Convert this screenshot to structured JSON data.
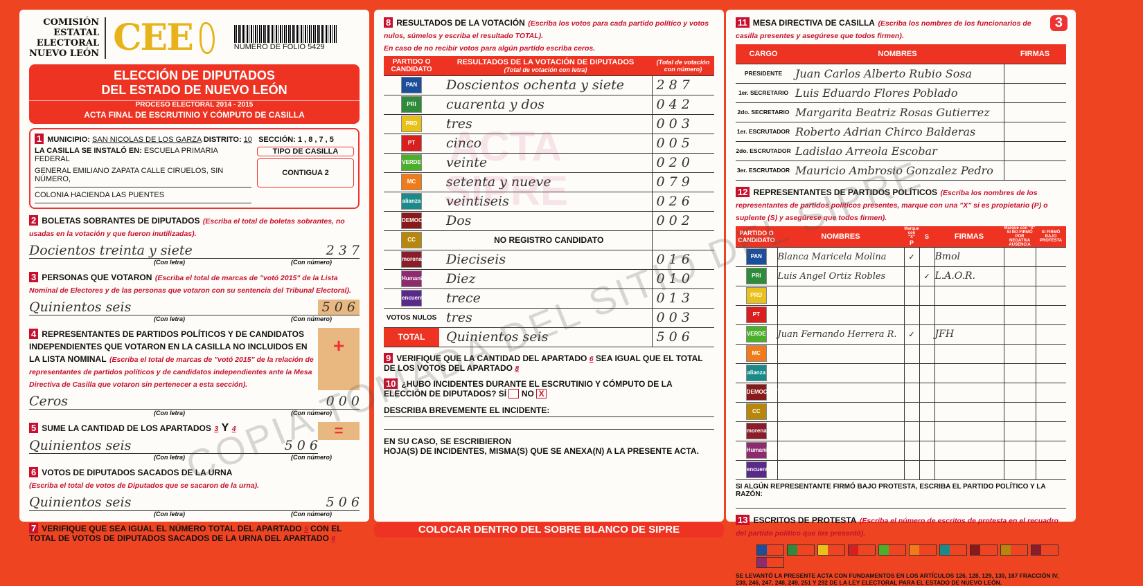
{
  "header": {
    "org": [
      "COMISIÓN",
      "ESTATAL",
      "ELECTORAL",
      "NUEVO LEÓN"
    ],
    "logo": "CEE",
    "folio": "NUMERO DE FOLIO 5429",
    "title1": "ELECCIÓN DE DIPUTADOS",
    "title2": "DEL ESTADO DE NUEVO LEÓN",
    "process": "PROCESO ELECTORAL  2014 - 2015",
    "acta": "ACTA FINAL DE ESCRUTINIO Y CÓMPUTO DE CASILLA",
    "page_number": "3"
  },
  "s1": {
    "num": "1",
    "municipio_label": "MUNICIPIO:",
    "municipio": "SAN NICOLAS DE LOS GARZA",
    "distrito_label": "DISTRITO:",
    "distrito": "10",
    "seccion_label": "SECCIÓN:",
    "seccion": "1 , 8 , 7 , 5",
    "instalo_label": "LA CASILLA SE INSTALÓ EN:",
    "addr1": "ESCUELA PRIMARIA FEDERAL",
    "addr2": "GENERAL EMILIANO ZAPATA CALLE CIRUELOS, SIN NÚMERO,",
    "addr3": "COLONIA HACIENDA LAS PUENTES",
    "tipo_label": "TIPO DE CASILLA",
    "tipo": "CONTIGUA 2"
  },
  "s2": {
    "num": "2",
    "title": "BOLETAS SOBRANTES DE DIPUTADOS",
    "note": "(Escriba el total de boletas sobrantes, no usadas en la votación y que fueron inutilizadas).",
    "letra": "Docientos treinta y siete",
    "numero": "2 3 7"
  },
  "labels": {
    "con_letra": "(Con letra)",
    "con_numero": "(Con número)",
    "plus": "+",
    "equals": "="
  },
  "s3": {
    "num": "3",
    "title": "PERSONAS QUE VOTARON",
    "note": "(Escriba el total de marcas de \"votó 2015\" de la Lista Nominal de Electores y de las personas que votaron con su sentencia del Tribunal Electoral).",
    "letra": "Quinientos seis",
    "numero": "5 0 6"
  },
  "s4": {
    "num": "4",
    "title": "REPRESENTANTES DE PARTIDOS POLÍTICOS Y DE CANDIDATOS INDEPENDIENTES QUE VOTARON EN LA CASILLA NO INCLUIDOS EN LA LISTA NOMINAL",
    "note": "(Escriba el total de marcas de \"votó 2015\" de la relación de representantes de partidos políticos y de candidatos independientes ante la Mesa Directiva de Casilla que votaron sin pertenecer a esta sección).",
    "letra": "Ceros",
    "numero": "0 0 0"
  },
  "s5": {
    "num": "5",
    "title": "SUME LA CANTIDAD DE LOS APARTADOS",
    "a": "3",
    "y": "Y",
    "b": "4",
    "letra": "Quinientos seis",
    "numero": "5 0 6"
  },
  "s6": {
    "num": "6",
    "title": "VOTOS DE DIPUTADOS SACADOS DE LA URNA",
    "note": "(Escriba el total de votos de Diputados que se sacaron de la urna).",
    "letra": "Quinientos seis",
    "numero": "5 0 6"
  },
  "s7": {
    "num": "7",
    "text1": "VERIFIQUE QUE SEA IGUAL EL NÚMERO TOTAL DEL APARTADO",
    "a": "5",
    "text2": "CON EL TOTAL DE VOTOS DE DIPUTADOS SACADOS DE LA URNA DEL APARTADO",
    "b": "6"
  },
  "s8": {
    "num": "8",
    "title": "RESULTADOS DE LA VOTACIÓN",
    "note": "(Escriba los votos para cada partido político y votos nulos, súmelos y escriba el resultado TOTAL).",
    "note2": "En caso de no recibir votos para algún partido escriba ceros.",
    "col1": "PARTIDO O CANDIDATO",
    "col2": "RESULTADOS DE LA VOTACIÓN DE DIPUTADOS",
    "col2sub": "(Total de votación con letra)",
    "col3": "(Total de votación con número)",
    "rows": [
      {
        "party": "PAN",
        "color": "#1b4f9c",
        "letra": "Doscientos ochenta y siete",
        "numero": "2 8 7"
      },
      {
        "party": "PRI",
        "color": "#2e8b3a",
        "letra": "cuarenta y dos",
        "numero": "0 4 2"
      },
      {
        "party": "PRD",
        "color": "#e8c21a",
        "letra": "tres",
        "numero": "0 0 3"
      },
      {
        "party": "PT",
        "color": "#d81e1e",
        "letra": "cinco",
        "numero": "0 0 5"
      },
      {
        "party": "VERDE",
        "color": "#4caf2c",
        "letra": "veinte",
        "numero": "0 2 0"
      },
      {
        "party": "MC",
        "color": "#f07b1a",
        "letra": "setenta y nueve",
        "numero": "0 7 9"
      },
      {
        "party": "alianza",
        "color": "#1a8a8a",
        "letra": "veintiseis",
        "numero": "0 2 6"
      },
      {
        "party": "DEMOCRATA",
        "color": "#8a1a1a",
        "letra": "Dos",
        "numero": "0 0 2"
      },
      {
        "party": "CC",
        "color": "#b8860b",
        "letra": "NO REGISTRO CANDIDATO",
        "numero": ""
      },
      {
        "party": "morena",
        "color": "#8b1c2a",
        "letra": "Dieciseis",
        "numero": "0 1 6"
      },
      {
        "party": "Humanista",
        "color": "#8e2a6e",
        "letra": "Diez",
        "numero": "0 1 0"
      },
      {
        "party": "encuentro",
        "color": "#5a2a8a",
        "letra": "trece",
        "numero": "0 1 3"
      }
    ],
    "nulos_label": "VOTOS NULOS",
    "nulos_letra": "tres",
    "nulos_numero": "0 0 3",
    "total_label": "TOTAL",
    "total_letra": "Quinientos seis",
    "total_numero": "5 0 6"
  },
  "s9": {
    "num": "9",
    "text1": "VERIFIQUE QUE LA CANTIDAD DEL APARTADO",
    "a": "6",
    "text2": "SEA IGUAL QUE EL TOTAL DE LOS VOTOS DEL APARTADO",
    "b": "8"
  },
  "s10": {
    "num": "10",
    "question": "¿HUBO INCIDENTES DURANTE EL ESCRUTINIO Y CÓMPUTO DE LA ELECCIÓN DE DIPUTADOS?",
    "si": "SÍ",
    "no": "NO",
    "no_mark": "X",
    "describe": "DESCRIBA BREVEMENTE EL INCIDENTE:",
    "hojas1": "EN SU CASO, SE ESCRIBIERON",
    "hojas2": "HOJA(S) DE INCIDENTES, MISMA(S) QUE SE ANEXA(N) A LA PRESENTE ACTA."
  },
  "s11": {
    "num": "11",
    "title": "MESA DIRECTIVA DE CASILLA",
    "note": "(Escriba los nombres de los funcionarios de casilla presentes y asegúrese que todos firmen).",
    "cols": [
      "CARGO",
      "NOMBRES",
      "FIRMAS"
    ],
    "rows": [
      {
        "cargo": "PRESIDENTE",
        "nombre": "Juan Carlos Alberto Rubio Sosa"
      },
      {
        "cargo": "1er. SECRETARIO",
        "nombre": "Luis Eduardo Flores Poblado"
      },
      {
        "cargo": "2do. SECRETARIO",
        "nombre": "Margarita Beatriz Rosas Gutierrez"
      },
      {
        "cargo": "1er. ESCRUTADOR",
        "nombre": "Roberto Adrian Chirco Balderas"
      },
      {
        "cargo": "2do. ESCRUTADOR",
        "nombre": "Ladislao Arreola Escobar"
      },
      {
        "cargo": "3er. ESCRUTADOR",
        "nombre": "Mauricio Ambrosio Gonzalez Pedro"
      }
    ]
  },
  "s12": {
    "num": "12",
    "title": "REPRESENTANTES DE PARTIDOS POLÍTICOS",
    "note": "(Escriba los nombres de los representantes de partidos políticos presentes, marque con una \"X\" si es propietario (P) o suplente (S) y asegúrese que todos firmen).",
    "cols": [
      "PARTIDO O CANDIDATO",
      "NOMBRES",
      "P",
      "S",
      "FIRMAS"
    ],
    "marque": "Marque con \"X\"",
    "marque2": "Marque con \"X\" SI NO FIRMÓ POR",
    "negativa": "NEGATIVA",
    "ausencia": "AUSENCIA",
    "protesta": "SI FIRMÓ BAJO PROTESTA",
    "rows": [
      {
        "party": "PAN",
        "color": "#1b4f9c",
        "nombre": "Blanca Maricela Molina",
        "p": "✓",
        "s": "",
        "firma": "Bmol"
      },
      {
        "party": "PRI",
        "color": "#2e8b3a",
        "nombre": "Luis Angel Ortiz Robles",
        "p": "",
        "s": "✓",
        "firma": "L.A.O.R."
      },
      {
        "party": "PRD",
        "color": "#e8c21a",
        "nombre": "",
        "p": "",
        "s": "",
        "firma": ""
      },
      {
        "party": "PT",
        "color": "#d81e1e",
        "nombre": "",
        "p": "",
        "s": "",
        "firma": ""
      },
      {
        "party": "VERDE",
        "color": "#4caf2c",
        "nombre": "Juan Fernando Herrera R.",
        "p": "✓",
        "s": "",
        "firma": "JFH"
      },
      {
        "party": "MC",
        "color": "#f07b1a",
        "nombre": "",
        "p": "",
        "s": "",
        "firma": ""
      },
      {
        "party": "alianza",
        "color": "#1a8a8a",
        "nombre": "",
        "p": "",
        "s": "",
        "firma": ""
      },
      {
        "party": "DEMOCRATA",
        "color": "#8a1a1a",
        "nombre": "",
        "p": "",
        "s": "",
        "firma": ""
      },
      {
        "party": "CC",
        "color": "#b8860b",
        "nombre": "",
        "p": "",
        "s": "",
        "firma": ""
      },
      {
        "party": "morena",
        "color": "#8b1c2a",
        "nombre": "",
        "p": "",
        "s": "",
        "firma": ""
      },
      {
        "party": "Humanista",
        "color": "#8e2a6e",
        "nombre": "",
        "p": "",
        "s": "",
        "firma": ""
      },
      {
        "party": "encuentro",
        "color": "#5a2a8a",
        "nombre": "",
        "p": "",
        "s": "",
        "firma": ""
      }
    ],
    "protesta_text": "SI ALGÚN REPRESENTANTE FIRMÓ BAJO PROTESTA, ESCRIBA EL PARTIDO POLÍTICO Y LA RAZÓN:"
  },
  "s13": {
    "num": "13",
    "title": "ESCRITOS DE PROTESTA",
    "note": "(Escriba el número de escritos de protesta en el recuadro del partido político que los presentó).",
    "legal": "SE LEVANTÓ LA PRESENTE ACTA CON FUNDAMENTOS EN LOS ARTÍCULOS 126, 128, 129, 130, 187 FRACCIÓN IV, 238, 246, 247, 248, 249, 251 Y 292 DE LA LEY ELECTORAL PARA EL ESTADO DE NUEVO LEÓN."
  },
  "watermarks": {
    "acta": "ACTA",
    "sipre": "SIPRE",
    "copia": "COPIA TOMADA DEL SITIO DEL SIPRE"
  },
  "footer": "COLOCAR DENTRO DEL SOBRE BLANCO DE SIPRE"
}
